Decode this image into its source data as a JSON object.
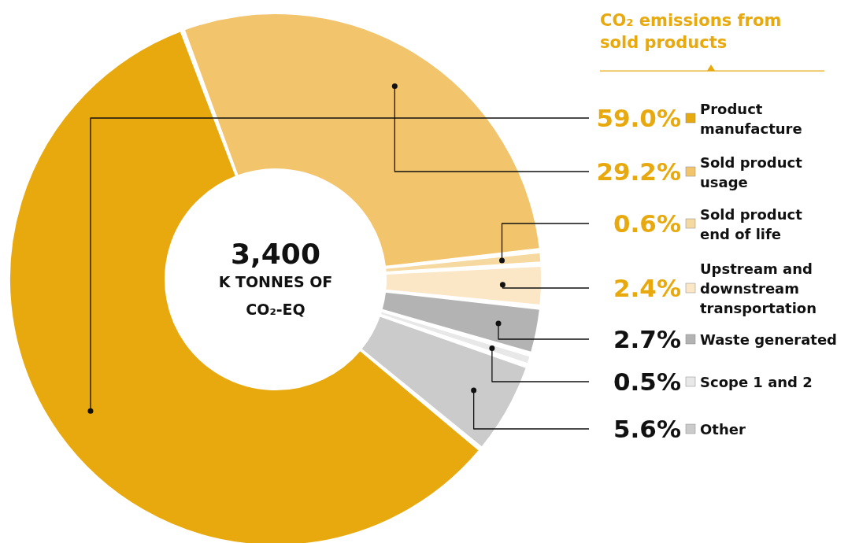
{
  "chart_data": {
    "type": "donut",
    "title": "CO₂ emissions from sold products",
    "categories": [
      "Product manufacture",
      "Sold product usage",
      "Sold product end of life",
      "Upstream and downstream transportation",
      "Waste generated",
      "Scope 1 and 2",
      "Other"
    ],
    "values": [
      59.0,
      29.2,
      0.6,
      2.4,
      2.7,
      0.5,
      5.6
    ],
    "colors": [
      "#e8a90e",
      "#f2c46b",
      "#f6d9a0",
      "#fbe6c6",
      "#b3b3b3",
      "#e8e8e8",
      "#cbcbcb"
    ],
    "value_labels": [
      "59.0%",
      "29.2%",
      "0.6%",
      "2.4%",
      "2.7%",
      "0.5%",
      "5.6%"
    ],
    "annotations": [
      "3,400",
      "K TONNES OF",
      "CO₂-EQ"
    ],
    "legend": "right"
  }
}
